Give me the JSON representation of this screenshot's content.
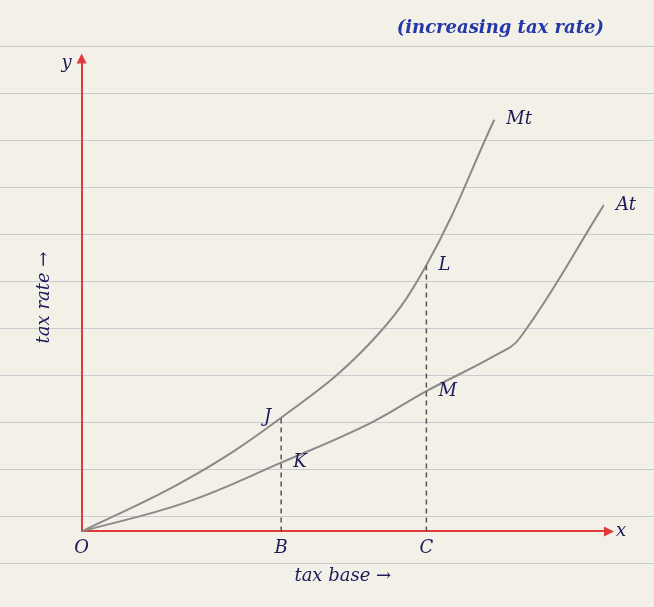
{
  "chart_data": {
    "type": "line",
    "title": "(increasing tax rate)",
    "x_label": "tax base →",
    "y_label": "tax rate →",
    "x": [
      0,
      2,
      3.82,
      5.5,
      6.6,
      7.9,
      8.4,
      10
    ],
    "series": [
      {
        "name": "Mt",
        "color": "#8a8a8a",
        "values": [
          0,
          1.1,
          2.43,
          4.0,
          5.69,
          8.8,
          null,
          null
        ]
      },
      {
        "name": "At",
        "color": "#8a8a8a",
        "values": [
          0,
          0.62,
          1.47,
          2.3,
          3.0,
          3.75,
          4.15,
          6.98
        ]
      }
    ],
    "xlim": [
      0,
      10
    ],
    "ylim": [
      0,
      10
    ],
    "grid": false,
    "tick_labels": false,
    "color": "#e03a3a",
    "guides": [
      3.82,
      6.6
    ],
    "annotations": [
      {
        "text": "O",
        "x": 0,
        "y": 0,
        "side": "below"
      },
      {
        "text": "B",
        "x": 3.82,
        "y": 0,
        "side": "below"
      },
      {
        "text": "C",
        "x": 6.6,
        "y": 0,
        "side": "below"
      },
      {
        "text": "J",
        "x": 3.82,
        "y": 2.43,
        "side": "left"
      },
      {
        "text": "K",
        "x": 3.82,
        "y": 1.47,
        "side": "right"
      },
      {
        "text": "L",
        "x": 6.6,
        "y": 5.69,
        "side": "right"
      },
      {
        "text": "M",
        "x": 6.6,
        "y": 3.0,
        "side": "right"
      },
      {
        "text": "Mt",
        "x": 7.9,
        "y": 8.8,
        "side": "right"
      },
      {
        "text": "At",
        "x": 10,
        "y": 6.98,
        "side": "right"
      },
      {
        "text": "y",
        "x": 0,
        "y": 10,
        "side": "left"
      },
      {
        "text": "x",
        "x": 10,
        "y": 0,
        "side": "right"
      }
    ]
  }
}
